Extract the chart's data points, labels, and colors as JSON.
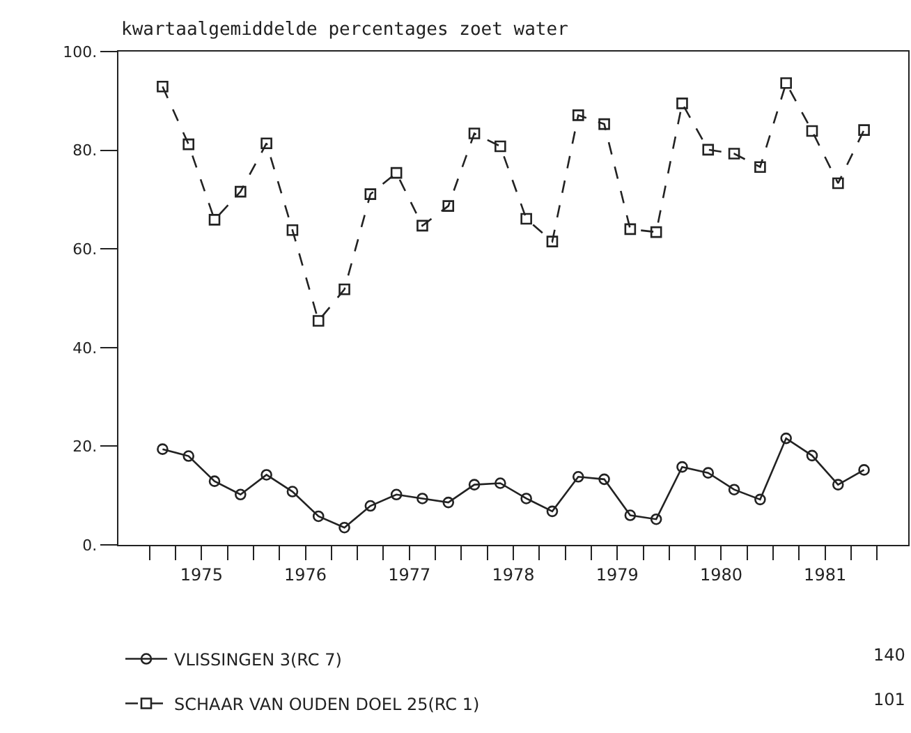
{
  "chart_data": {
    "type": "line",
    "title": "kwartaalgemiddelde percentages zoet water",
    "x": [
      1975.125,
      1975.375,
      1975.625,
      1975.875,
      1976.125,
      1976.375,
      1976.625,
      1976.875,
      1977.125,
      1977.375,
      1977.625,
      1977.875,
      1978.125,
      1978.375,
      1978.625,
      1978.875,
      1979.125,
      1979.375,
      1979.625,
      1979.875,
      1980.125,
      1980.375,
      1980.625,
      1980.875,
      1981.125,
      1981.375,
      1981.625,
      1981.875
    ],
    "series": [
      {
        "name": "VLISSINGEN 3(RC 7)",
        "color": "#222222",
        "marker": "circle",
        "line_style": "solid",
        "values": [
          19.4,
          18.0,
          12.9,
          10.2,
          14.2,
          10.8,
          5.8,
          3.5,
          7.9,
          10.2,
          9.4,
          8.6,
          12.2,
          12.5,
          9.4,
          6.8,
          13.8,
          13.3,
          6.0,
          5.2,
          15.8,
          14.6,
          11.2,
          9.2,
          21.6,
          18.1,
          12.2,
          15.2
        ]
      },
      {
        "name": "SCHAAR VAN OUDEN DOEL 25(RC 1)",
        "color": "#222222",
        "marker": "square",
        "line_style": "dashed",
        "values": [
          92.9,
          81.2,
          65.9,
          71.6,
          81.4,
          63.8,
          45.4,
          51.8,
          71.1,
          75.4,
          64.7,
          68.7,
          83.4,
          80.8,
          66.1,
          61.5,
          87.1,
          85.3,
          64.0,
          63.4,
          89.5,
          80.1,
          79.3,
          76.6,
          93.6,
          83.9,
          73.3,
          84.1
        ]
      }
    ],
    "annotations": [
      "140",
      "101"
    ],
    "xlim": [
      1974.7,
      1982.3
    ],
    "xticks": [
      {
        "value": 1975,
        "label": null
      },
      {
        "value": 1975.25,
        "label": null
      },
      {
        "value": 1975.5,
        "label": "1975"
      },
      {
        "value": 1975.75,
        "label": null
      },
      {
        "value": 1976,
        "label": null
      },
      {
        "value": 1976.25,
        "label": null
      },
      {
        "value": 1976.5,
        "label": "1976"
      },
      {
        "value": 1976.75,
        "label": null
      },
      {
        "value": 1977,
        "label": null
      },
      {
        "value": 1977.25,
        "label": null
      },
      {
        "value": 1977.5,
        "label": "1977"
      },
      {
        "value": 1977.75,
        "label": null
      },
      {
        "value": 1978,
        "label": null
      },
      {
        "value": 1978.25,
        "label": null
      },
      {
        "value": 1978.5,
        "label": "1978"
      },
      {
        "value": 1978.75,
        "label": null
      },
      {
        "value": 1979,
        "label": null
      },
      {
        "value": 1979.25,
        "label": null
      },
      {
        "value": 1979.5,
        "label": "1979"
      },
      {
        "value": 1979.75,
        "label": null
      },
      {
        "value": 1980,
        "label": null
      },
      {
        "value": 1980.25,
        "label": null
      },
      {
        "value": 1980.5,
        "label": "1980"
      },
      {
        "value": 1980.75,
        "label": null
      },
      {
        "value": 1981,
        "label": null
      },
      {
        "value": 1981.25,
        "label": null
      },
      {
        "value": 1981.5,
        "label": "1981"
      },
      {
        "value": 1981.75,
        "label": null
      },
      {
        "value": 1982,
        "label": null
      }
    ],
    "ylim": [
      0,
      100
    ],
    "yticks": [
      {
        "value": 0,
        "label": "0."
      },
      {
        "value": 20,
        "label": "20."
      },
      {
        "value": 40,
        "label": "40."
      },
      {
        "value": 60,
        "label": "60."
      },
      {
        "value": 80,
        "label": "80."
      },
      {
        "value": 100,
        "label": "100."
      }
    ],
    "legend": "bottom"
  }
}
